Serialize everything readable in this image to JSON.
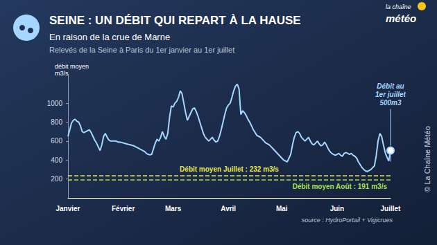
{
  "chart_data": {
    "type": "line",
    "title": "SEINE : UN DÉBIT QUI REPART À LA HAUSE",
    "subtitle": [
      "En raison de la crue de Marne",
      "Relevés de la Seine à Paris du 1er janvier au 1er juillet"
    ],
    "y_label": [
      "débit moyen",
      "m3/s"
    ],
    "source": "source : HydroPortail + Vigicrues",
    "credit": "© La Chaîne Météo",
    "logo": [
      "la chaîne",
      "météo"
    ],
    "annotation": {
      "lines": [
        "Débit au",
        "1er juillet",
        "500m3"
      ]
    },
    "reference_lines": [
      {
        "label": "Débit moyen Juillet : 232 m3/s",
        "value": 232,
        "color": "#e6e64a"
      },
      {
        "label": "Débit moyen Août : 191 m3/s",
        "value": 191,
        "color": "#a8e04c"
      }
    ],
    "color": "#a6d6ff",
    "grid": false,
    "ylim": [
      0,
      1300
    ],
    "yticks": [
      200,
      400,
      600,
      800,
      1000
    ],
    "categories": [
      "Janvier",
      null,
      null,
      null,
      null,
      null,
      null,
      null,
      null,
      null,
      null,
      null,
      null,
      null,
      null,
      null,
      null,
      null,
      null,
      null,
      null,
      null,
      null,
      null,
      null,
      null,
      null,
      null,
      null,
      null,
      null,
      "Février",
      null,
      null,
      null,
      null,
      null,
      null,
      null,
      null,
      null,
      null,
      null,
      null,
      null,
      null,
      null,
      null,
      null,
      null,
      null,
      null,
      null,
      null,
      null,
      null,
      null,
      null,
      null,
      "Mars",
      null,
      null,
      null,
      null,
      null,
      null,
      null,
      null,
      null,
      null,
      null,
      null,
      null,
      null,
      null,
      null,
      null,
      null,
      null,
      null,
      null,
      null,
      null,
      null,
      null,
      null,
      null,
      null,
      null,
      null,
      "Avril",
      null,
      null,
      null,
      null,
      null,
      null,
      null,
      null,
      null,
      null,
      null,
      null,
      null,
      null,
      null,
      null,
      null,
      null,
      null,
      null,
      null,
      null,
      null,
      null,
      null,
      null,
      null,
      null,
      null,
      "Mai",
      null,
      null,
      null,
      null,
      null,
      null,
      null,
      null,
      null,
      null,
      null,
      null,
      null,
      null,
      null,
      null,
      null,
      null,
      null,
      null,
      null,
      null,
      null,
      null,
      null,
      null,
      null,
      null,
      null,
      null,
      "Juin",
      null,
      null,
      null,
      null,
      null,
      null,
      null,
      null,
      null,
      null,
      null,
      null,
      null,
      null,
      null,
      null,
      null,
      null,
      null,
      null,
      null,
      null,
      null,
      null,
      null,
      null,
      null,
      null,
      null,
      "Juillet"
    ],
    "values": [
      650,
      720,
      790,
      820,
      830,
      810,
      800,
      760,
      700,
      690,
      700,
      710,
      720,
      690,
      650,
      610,
      580,
      540,
      500,
      560,
      650,
      680,
      640,
      610,
      600,
      600,
      600,
      600,
      590,
      590,
      585,
      580,
      575,
      570,
      565,
      560,
      555,
      550,
      540,
      530,
      520,
      510,
      500,
      490,
      470,
      460,
      455,
      460,
      520,
      580,
      620,
      600,
      640,
      700,
      650,
      620,
      680,
      850,
      970,
      960,
      1000,
      1020,
      1060,
      1130,
      1100,
      1000,
      900,
      820,
      860,
      900,
      940,
      950,
      910,
      860,
      800,
      740,
      680,
      640,
      620,
      600,
      620,
      640,
      610,
      590,
      600,
      650,
      720,
      800,
      880,
      950,
      980,
      1000,
      1060,
      1130,
      1180,
      1200,
      1150,
      880,
      920,
      900,
      870,
      830,
      800,
      760,
      720,
      690,
      660,
      650,
      640,
      620,
      600,
      580,
      570,
      560,
      540,
      520,
      500,
      480,
      460,
      440,
      420,
      400,
      390,
      380,
      420,
      460,
      560,
      640,
      690,
      700,
      680,
      640,
      620,
      600,
      620,
      640,
      600,
      570,
      560,
      580,
      600,
      570,
      550,
      560,
      590,
      560,
      520,
      490,
      470,
      460,
      450,
      460,
      470,
      450,
      440,
      470,
      480,
      470,
      460,
      470,
      450,
      440,
      420,
      380,
      350,
      320,
      300,
      285,
      280,
      290,
      300,
      320,
      340,
      450,
      600,
      680,
      650,
      560,
      480,
      430,
      390,
      500
    ]
  }
}
